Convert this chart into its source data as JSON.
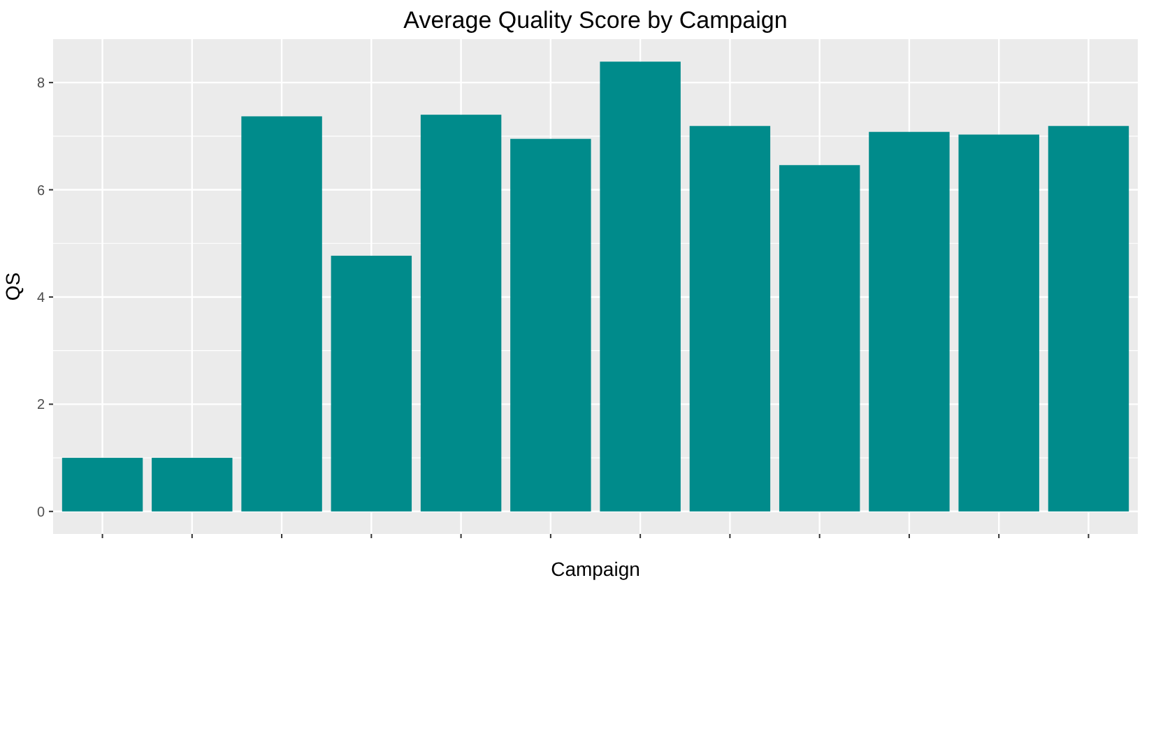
{
  "chart_data": {
    "type": "bar",
    "title": "Average Quality Score by Campaign",
    "xlabel": "Campaign",
    "ylabel": "QS",
    "categories": [
      null,
      null,
      null,
      null,
      null,
      null,
      null,
      null,
      null,
      null,
      null,
      null
    ],
    "values": [
      1.0,
      1.0,
      7.37,
      4.77,
      7.4,
      6.95,
      8.39,
      7.19,
      6.46,
      7.08,
      7.03,
      7.19
    ],
    "color": "#008b8b",
    "ylim": [
      -0.42,
      8.81
    ],
    "yticks": [
      0,
      2,
      4,
      6,
      8
    ],
    "grid": true
  }
}
